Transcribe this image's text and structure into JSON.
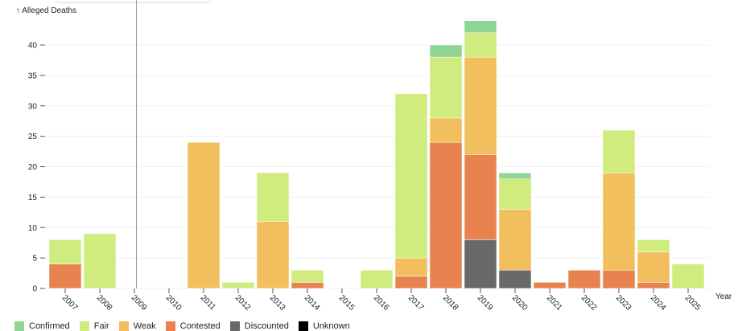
{
  "chart_data": {
    "type": "bar",
    "stacked": true,
    "ylabel": "↑ Alleged Deaths",
    "xlabel": "Year",
    "ylim": [
      0,
      44
    ],
    "yticks": [
      0,
      5,
      10,
      15,
      20,
      25,
      30,
      35,
      40
    ],
    "grid": true,
    "legend_position": "bottom-left",
    "categories": [
      "2007",
      "2008",
      "2009",
      "2010",
      "2011",
      "2012",
      "2013",
      "2014",
      "2015",
      "2016",
      "2017",
      "2018",
      "2019",
      "2020",
      "2021",
      "2022",
      "2023",
      "2024",
      "2025"
    ],
    "series": [
      {
        "name": "Discounted",
        "color": "#696969",
        "values": [
          0,
          0,
          0,
          0,
          0,
          0,
          0,
          0,
          0,
          0,
          0,
          0,
          8,
          3,
          0,
          0,
          0,
          0,
          0
        ]
      },
      {
        "name": "Contested",
        "color": "#e8834f",
        "values": [
          4,
          0,
          0,
          0,
          0,
          0,
          0,
          1,
          0,
          0,
          2,
          24,
          14,
          0,
          1,
          3,
          3,
          1,
          0
        ]
      },
      {
        "name": "Weak",
        "color": "#f2bf5e",
        "values": [
          0,
          0,
          0,
          0,
          24,
          0,
          11,
          0,
          0,
          0,
          3,
          4,
          16,
          10,
          0,
          0,
          16,
          5,
          0
        ]
      },
      {
        "name": "Fair",
        "color": "#d0eb7e",
        "values": [
          4,
          9,
          0,
          0,
          0,
          1,
          8,
          2,
          0,
          3,
          27,
          10,
          4,
          5,
          0,
          0,
          7,
          2,
          4
        ]
      },
      {
        "name": "Confirmed",
        "color": "#8fd694",
        "values": [
          0,
          0,
          0,
          0,
          0,
          0,
          0,
          0,
          0,
          0,
          0,
          2,
          2,
          1,
          0,
          0,
          0,
          0,
          0
        ]
      },
      {
        "name": "Unknown",
        "color": "#000000",
        "values": [
          0,
          0,
          0,
          0,
          0,
          0,
          0,
          0,
          0,
          0,
          0,
          0,
          0,
          0,
          0,
          0,
          0,
          0,
          0
        ]
      }
    ],
    "legend": [
      "Confirmed",
      "Fair",
      "Weak",
      "Contested",
      "Discounted",
      "Unknown"
    ]
  }
}
